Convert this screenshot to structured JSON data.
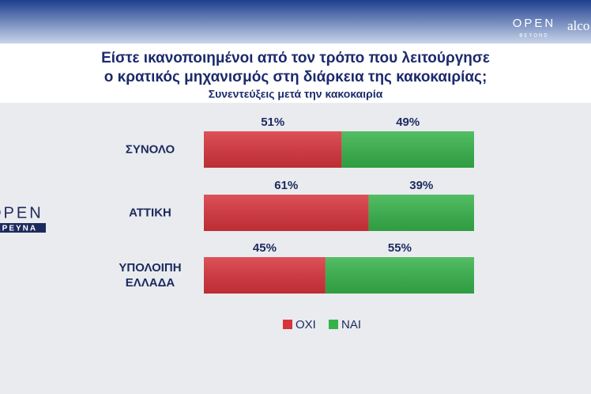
{
  "brand": {
    "top_logo": "OPEN",
    "top_tagline": "BEYOND",
    "partner": "alco",
    "side_logo": "OPEN",
    "side_tag": "ΕΡΕΥΝΑ"
  },
  "chart_data": {
    "type": "bar",
    "orientation": "horizontal",
    "stacked": true,
    "title": [
      "Είστε ικανοποιημένοι από τον τρόπο που λειτούργησε",
      "ο κρατικός μηχανισμός στη διάρκεια της κακοκαιρίας;"
    ],
    "subtitle": "Συνεντεύξεις μετά την κακοκαιρία",
    "categories": [
      "ΣΥΝΟΛΟ",
      "ΑΤΤΙΚΗ",
      "ΥΠΟΛΟΙΠΗ ΕΛΛΑΔΑ"
    ],
    "series": [
      {
        "name": "ΟΧΙ",
        "color": "#d7333b",
        "values": [
          51,
          61,
          45
        ],
        "value_labels": [
          "51%",
          "61%",
          "45%"
        ]
      },
      {
        "name": "ΝΑΙ",
        "color": "#36b24a",
        "values": [
          49,
          39,
          55
        ],
        "value_labels": [
          "49%",
          "39%",
          "55%"
        ]
      }
    ],
    "xlim": [
      0,
      100
    ],
    "grid": false,
    "legend": "bottom"
  }
}
